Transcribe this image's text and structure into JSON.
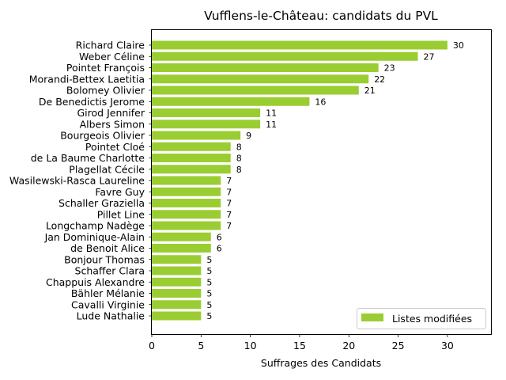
{
  "chart_data": {
    "type": "bar",
    "orientation": "horizontal",
    "title": "Vufflens-le-Château: candidats du PVL",
    "xlabel": "Suffrages des Candidats",
    "ylabel": "",
    "xlim": [
      0,
      34.5
    ],
    "xticks": [
      0,
      5,
      10,
      15,
      20,
      25,
      30
    ],
    "grid": false,
    "legend_position": "lower-right",
    "bar_color": "#9acd32",
    "categories": [
      "Richard Claire",
      "Weber Céline",
      "Pointet François",
      "Morandi-Bettex Laetitia",
      "Bolomey Olivier",
      "De Benedictis Jerome",
      "Girod Jennifer",
      "Albers Simon",
      "Bourgeois Olivier",
      "Pointet Cloé",
      "de La Baume Charlotte",
      "Plagellat Cécile",
      "Wasilewski-Rasca Laureline",
      "Favre Guy",
      "Schaller Graziella",
      "Pillet Line",
      "Longchamp Nadège",
      "Jan Dominique-Alain",
      "de Benoit Alice",
      "Bonjour Thomas",
      "Schaffer Clara",
      "Chappuis Alexandre",
      "Bähler Mélanie",
      "Cavalli Virginie",
      "Lude Nathalie"
    ],
    "series": [
      {
        "name": "Listes modifiées",
        "values": [
          30,
          27,
          23,
          22,
          21,
          16,
          11,
          11,
          9,
          8,
          8,
          8,
          7,
          7,
          7,
          7,
          7,
          6,
          6,
          5,
          5,
          5,
          5,
          5,
          5
        ]
      }
    ]
  }
}
